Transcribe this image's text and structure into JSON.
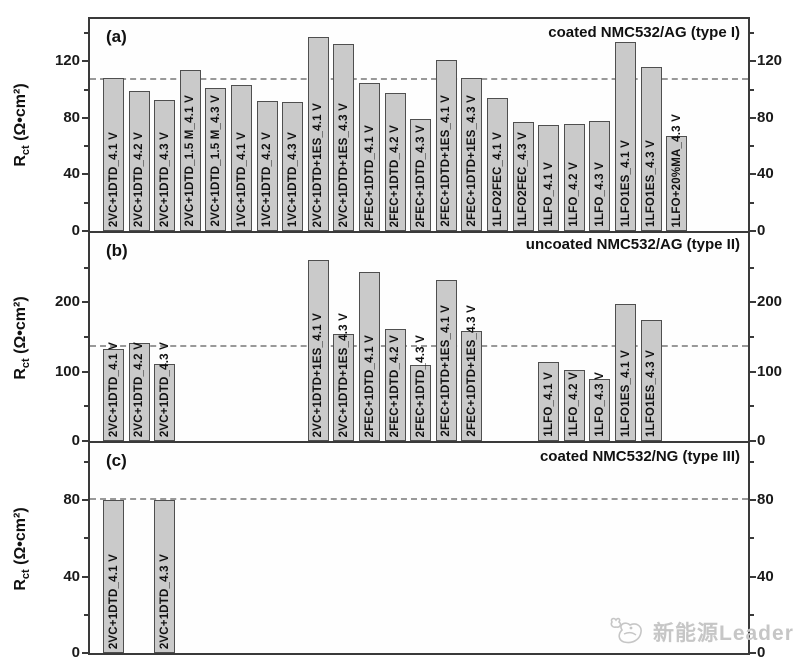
{
  "figure": {
    "n_slots": 23,
    "colors": {
      "bar_fill": "#cacaca",
      "bar_border": "#4f4f4f",
      "axis": "#3a3a3a",
      "dashed_line": "#999999",
      "logo": "#c6c6c6"
    },
    "logo": {
      "icon": "bird-icon",
      "text": "新能源Leader"
    }
  },
  "chart_data": [
    {
      "type": "bar",
      "panel_label": "(a)",
      "title": "coated NMC532/AG (type I)",
      "ylabel": {
        "base": "R",
        "sub": "ct",
        "unit": " (Ω•cm²)"
      },
      "ylim": [
        0,
        150
      ],
      "yticks_major": [
        0,
        40,
        80,
        120
      ],
      "yticks_minor": [
        20,
        60,
        100,
        140
      ],
      "dashed_line": 107,
      "grid": false,
      "legend": false,
      "bars": [
        {
          "slot": 1,
          "label": "2VC+1DTD_4.1 V",
          "value": 108
        },
        {
          "slot": 2,
          "label": "2VC+1DTD_4.2 V",
          "value": 99
        },
        {
          "slot": 3,
          "label": "2VC+1DTD_4.3 V",
          "value": 93
        },
        {
          "slot": 4,
          "label": "2VC+1DTD_1.5 M_4.1 V",
          "value": 114
        },
        {
          "slot": 5,
          "label": "2VC+1DTD_1.5 M_4.3 V",
          "value": 101
        },
        {
          "slot": 6,
          "label": "1VC+1DTD_4.1 V",
          "value": 103
        },
        {
          "slot": 7,
          "label": "1VC+1DTD_4.2 V",
          "value": 92
        },
        {
          "slot": 8,
          "label": "1VC+1DTD_4.3 V",
          "value": 91
        },
        {
          "slot": 9,
          "label": "2VC+1DTD+1ES_4.1 V",
          "value": 137
        },
        {
          "slot": 10,
          "label": "2VC+1DTD+1ES_4.3 V",
          "value": 132
        },
        {
          "slot": 11,
          "label": "2FEC+1DTD_4.1 V",
          "value": 105
        },
        {
          "slot": 12,
          "label": "2FEC+1DTD_4.2 V",
          "value": 98
        },
        {
          "slot": 13,
          "label": "2FEC+1DTD_4.3 V",
          "value": 79
        },
        {
          "slot": 14,
          "label": "2FEC+1DTD+1ES_4.1 V",
          "value": 121
        },
        {
          "slot": 15,
          "label": "2FEC+1DTD+1ES_4.3 V",
          "value": 108
        },
        {
          "slot": 16,
          "label": "1LFO2FEC_4.1 V",
          "value": 94
        },
        {
          "slot": 17,
          "label": "1LFO2FEC_4.3 V",
          "value": 77
        },
        {
          "slot": 18,
          "label": "1LFO_4.1 V",
          "value": 75
        },
        {
          "slot": 19,
          "label": "1LFO_4.2 V",
          "value": 76
        },
        {
          "slot": 20,
          "label": "1LFO_4.3 V",
          "value": 78
        },
        {
          "slot": 21,
          "label": "1LFO1ES_4.1 V",
          "value": 134
        },
        {
          "slot": 22,
          "label": "1LFO1ES_4.3 V",
          "value": 116
        },
        {
          "slot": 23,
          "label": "1LFO+20%MA_4.3 V",
          "value": 67
        }
      ]
    },
    {
      "type": "bar",
      "panel_label": "(b)",
      "title": "uncoated NMC532/AG (type II)",
      "ylabel": {
        "base": "R",
        "sub": "ct",
        "unit": " (Ω•cm²)"
      },
      "ylim": [
        0,
        300
      ],
      "yticks_major": [
        0,
        100,
        200
      ],
      "yticks_minor": [
        50,
        150,
        250
      ],
      "dashed_line": 135,
      "grid": false,
      "legend": false,
      "bars": [
        {
          "slot": 1,
          "label": "2VC+1DTD_4.1 V",
          "value": 133
        },
        {
          "slot": 2,
          "label": "2VC+1DTD_4.2 V",
          "value": 141
        },
        {
          "slot": 3,
          "label": "2VC+1DTD_4.3 V",
          "value": 111
        },
        {
          "slot": 9,
          "label": "2VC+1DTD+1ES_4.1 V",
          "value": 261
        },
        {
          "slot": 10,
          "label": "2VC+1DTD+1ES_4.3 V",
          "value": 154
        },
        {
          "slot": 11,
          "label": "2FEC+1DTD_4.1 V",
          "value": 244
        },
        {
          "slot": 12,
          "label": "2FEC+1DTD_4.2 V",
          "value": 161
        },
        {
          "slot": 13,
          "label": "2FEC+1DTD_4.3 V",
          "value": 110
        },
        {
          "slot": 14,
          "label": "2FEC+1DTD+1ES_4.1 V",
          "value": 232
        },
        {
          "slot": 15,
          "label": "2FEC+1DTD+1ES_4.3 V",
          "value": 159
        },
        {
          "slot": 18,
          "label": "1LFO_4.1 V",
          "value": 114
        },
        {
          "slot": 19,
          "label": "1LFO_4.2 V",
          "value": 102
        },
        {
          "slot": 20,
          "label": "1LFO_4.3 V",
          "value": 89
        },
        {
          "slot": 21,
          "label": "1LFO1ES_4.1 V",
          "value": 197
        },
        {
          "slot": 22,
          "label": "1LFO1ES_4.3 V",
          "value": 174
        }
      ]
    },
    {
      "type": "bar",
      "panel_label": "(c)",
      "title": "coated NMC532/NG (type III)",
      "ylabel": {
        "base": "R",
        "sub": "ct",
        "unit": " (Ω•cm²)"
      },
      "ylim": [
        0,
        110
      ],
      "yticks_major": [
        0,
        40,
        80
      ],
      "yticks_minor": [
        20,
        60,
        100
      ],
      "dashed_line": 80,
      "grid": false,
      "legend": false,
      "bars": [
        {
          "slot": 1,
          "label": "2VC+1DTD_4.1 V",
          "value": 80
        },
        {
          "slot": 3,
          "label": "2VC+1DTD_4.3 V",
          "value": 80
        }
      ]
    }
  ]
}
